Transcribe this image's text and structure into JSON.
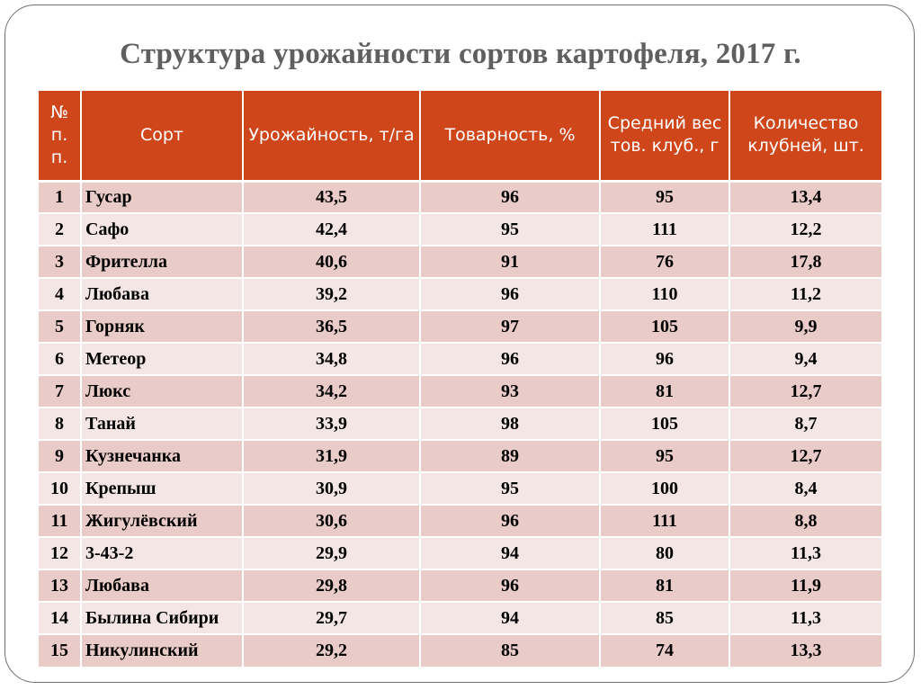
{
  "title": "Структура урожайности сортов картофеля, 2017 г.",
  "table": {
    "headers": [
      "№ п. п.",
      "Сорт",
      "Урожайность, т/га",
      "Товарность, %",
      "Средний вес тов. клуб., г",
      "Количество клубней, шт."
    ],
    "rows": [
      [
        "1",
        "Гусар",
        "43,5",
        "96",
        "95",
        "13,4"
      ],
      [
        "2",
        "Сафо",
        "42,4",
        "95",
        "111",
        "12,2"
      ],
      [
        "3",
        "Фрителла",
        "40,6",
        "91",
        "76",
        "17,8"
      ],
      [
        "4",
        "Любава",
        "39,2",
        "96",
        "110",
        "11,2"
      ],
      [
        "5",
        "Горняк",
        "36,5",
        "97",
        "105",
        "9,9"
      ],
      [
        "6",
        "Метеор",
        "34,8",
        "96",
        "96",
        "9,4"
      ],
      [
        "7",
        "Люкс",
        "34,2",
        "93",
        "81",
        "12,7"
      ],
      [
        "8",
        "Танай",
        "33,9",
        "98",
        "105",
        "8,7"
      ],
      [
        "9",
        "Кузнечанка",
        "31,9",
        "89",
        "95",
        "12,7"
      ],
      [
        "10",
        "Крепыш",
        "30,9",
        "95",
        "100",
        "8,4"
      ],
      [
        "11",
        "Жигулёвский",
        "30,6",
        "96",
        "111",
        "8,8"
      ],
      [
        "12",
        "3-43-2",
        "29,9",
        "94",
        "80",
        "11,3"
      ],
      [
        "13",
        "Любава",
        "29,8",
        "96",
        "81",
        "11,9"
      ],
      [
        "14",
        "Былина Сибири",
        "29,7",
        "94",
        "85",
        "11,3"
      ],
      [
        "15",
        "Никулинский",
        "29,2",
        "85",
        "74",
        "13,3"
      ]
    ]
  },
  "colors": {
    "header_bg": "#cf461b",
    "row_odd": "#e9cbc8",
    "row_even": "#f4e6e5",
    "title": "#5f5f5f"
  }
}
